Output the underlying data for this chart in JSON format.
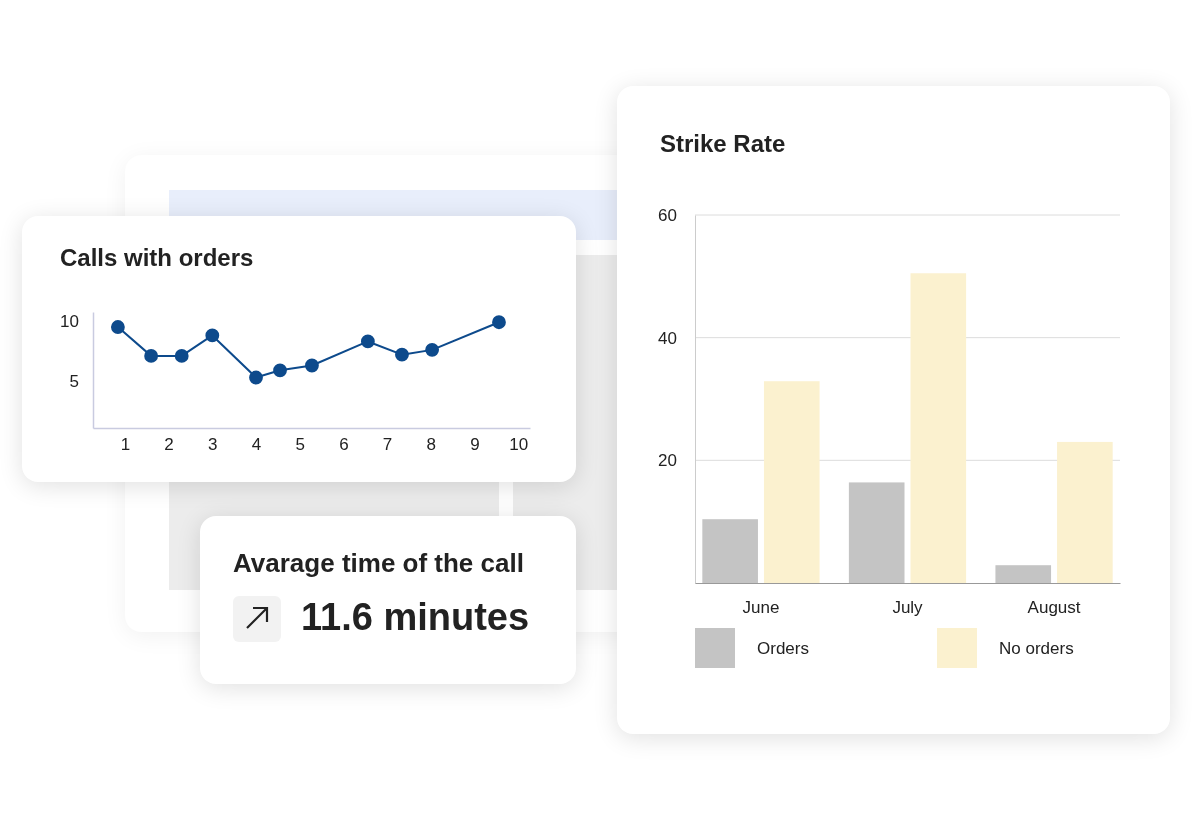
{
  "chart_data": [
    {
      "type": "line",
      "title": "Calls with orders",
      "x": [
        0.84,
        1.6,
        2.3,
        3.0,
        4.0,
        4.55,
        5.28,
        6.56,
        7.34,
        8.03,
        9.56
      ],
      "series": [
        {
          "color": "#0d4a8c",
          "values": [
            9.5,
            7.1,
            7.1,
            8.8,
            5.3,
            5.9,
            6.3,
            8.3,
            7.2,
            7.6,
            9.9
          ]
        }
      ],
      "xlim": [
        0.27,
        10.27
      ],
      "ylim": [
        1.1,
        10.75
      ],
      "xticks": [
        1,
        2,
        3,
        4,
        5,
        6,
        7,
        8,
        9,
        10
      ],
      "yticks": [
        5,
        10
      ],
      "marker": "circle",
      "line_style": "solid"
    },
    {
      "type": "bar",
      "title": "Strike Rate",
      "categories": [
        "June",
        "July",
        "August"
      ],
      "series": [
        {
          "name": "Orders",
          "color": "#c4c4c4",
          "values": [
            10.4,
            16.4,
            2.9
          ]
        },
        {
          "name": "No orders",
          "color": "#fbf1cf",
          "values": [
            32.9,
            50.5,
            23.0
          ]
        }
      ],
      "ylim": [
        0,
        60
      ],
      "yticks": [
        20,
        40,
        60
      ],
      "grid": "y",
      "legend": "bottom"
    },
    {
      "type": "other",
      "title": "Avarage time of the call",
      "annotations": [
        "11.6 minutes"
      ]
    }
  ]
}
